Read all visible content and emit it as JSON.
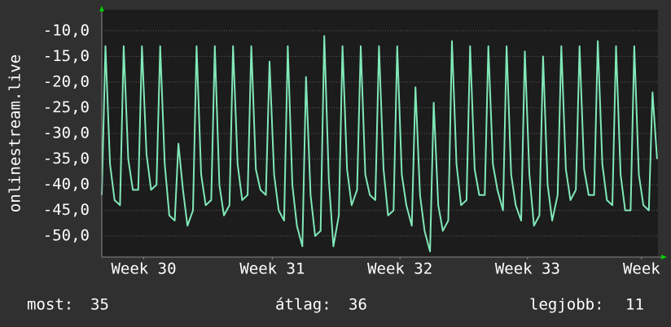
{
  "chart_data": {
    "type": "line",
    "y_axis_label": "onlinestream.live",
    "xlim": [
      0,
      30.5
    ],
    "ylim": [
      -54.1,
      -5.9
    ],
    "xticks": [
      {
        "value": 2.3,
        "label": "Week 30"
      },
      {
        "value": 9.35,
        "label": "Week 31"
      },
      {
        "value": 16.35,
        "label": "Week 32"
      },
      {
        "value": 23.35,
        "label": "Week 33"
      },
      {
        "value": 29.6,
        "label": "Week"
      }
    ],
    "yticks": [
      {
        "value": -10,
        "label": "-10,0"
      },
      {
        "value": -15,
        "label": "-15,0"
      },
      {
        "value": -20,
        "label": "-20,0"
      },
      {
        "value": -25,
        "label": "-25,0"
      },
      {
        "value": -30,
        "label": "-30,0"
      },
      {
        "value": -35,
        "label": "-35,0"
      },
      {
        "value": -40,
        "label": "-40,0"
      },
      {
        "value": -45,
        "label": "-45,0"
      },
      {
        "value": -50,
        "label": "-50,0"
      }
    ],
    "grid": true,
    "x": [
      0,
      0.2,
      0.45,
      0.7,
      1,
      1.2,
      1.45,
      1.7,
      2,
      2.2,
      2.45,
      2.7,
      3,
      3.2,
      3.45,
      3.7,
      4,
      4.2,
      4.45,
      4.7,
      5,
      5.2,
      5.45,
      5.7,
      6,
      6.2,
      6.45,
      6.7,
      7,
      7.2,
      7.45,
      7.7,
      8,
      8.2,
      8.45,
      8.7,
      9,
      9.2,
      9.45,
      9.7,
      10,
      10.2,
      10.45,
      10.7,
      11,
      11.2,
      11.45,
      11.7,
      12,
      12.2,
      12.45,
      12.7,
      13,
      13.2,
      13.45,
      13.7,
      14,
      14.2,
      14.45,
      14.7,
      15,
      15.2,
      15.45,
      15.7,
      16,
      16.2,
      16.45,
      16.7,
      17,
      17.2,
      17.45,
      17.7,
      18,
      18.2,
      18.45,
      18.7,
      19,
      19.2,
      19.45,
      19.7,
      20,
      20.2,
      20.45,
      20.7,
      21,
      21.2,
      21.45,
      21.7,
      22,
      22.2,
      22.45,
      22.7,
      23,
      23.2,
      23.45,
      23.7,
      24,
      24.2,
      24.45,
      24.7,
      25,
      25.2,
      25.45,
      25.7,
      26,
      26.2,
      26.45,
      26.7,
      27,
      27.2,
      27.45,
      27.7,
      28,
      28.2,
      28.45,
      28.7,
      29,
      29.2,
      29.45,
      29.7,
      30,
      30.2,
      30.45
    ],
    "series": [
      {
        "color": "#80e8b8",
        "values": [
          -42,
          -13,
          -36,
          -43,
          -44,
          -13,
          -35,
          -41,
          -41,
          -13,
          -34,
          -41,
          -40,
          -13,
          -36,
          -46,
          -47,
          -32,
          -41,
          -48,
          -45,
          -13,
          -38,
          -44,
          -43,
          -13,
          -40,
          -46,
          -44,
          -13,
          -36,
          -43,
          -42,
          -13,
          -37,
          -41,
          -42,
          -16,
          -38,
          -45,
          -47,
          -13,
          -40,
          -48,
          -52,
          -19,
          -42,
          -50,
          -49,
          -11,
          -39,
          -52,
          -46,
          -13,
          -37,
          -44,
          -41,
          -13,
          -38,
          -42,
          -43,
          -13,
          -37,
          -46,
          -45,
          -13,
          -38,
          -44,
          -48,
          -21,
          -42,
          -49,
          -53,
          -24,
          -44,
          -49,
          -47,
          -12,
          -36,
          -44,
          -43,
          -13,
          -37,
          -42,
          -42,
          -13,
          -36,
          -41,
          -45,
          -13,
          -38,
          -44,
          -47,
          -14,
          -38,
          -48,
          -46,
          -15,
          -40,
          -47,
          -42,
          -13,
          -37,
          -43,
          -41,
          -13,
          -37,
          -42,
          -42,
          -12,
          -36,
          -43,
          -44,
          -13,
          -38,
          -45,
          -45,
          -13,
          -38,
          -44,
          -45,
          -22,
          -35
        ]
      }
    ]
  },
  "footer": {
    "current": {
      "label": "most:",
      "value": 35
    },
    "average": {
      "label": "átlag:",
      "value": 36
    },
    "best": {
      "label": "legjobb:",
      "value": 11
    }
  }
}
